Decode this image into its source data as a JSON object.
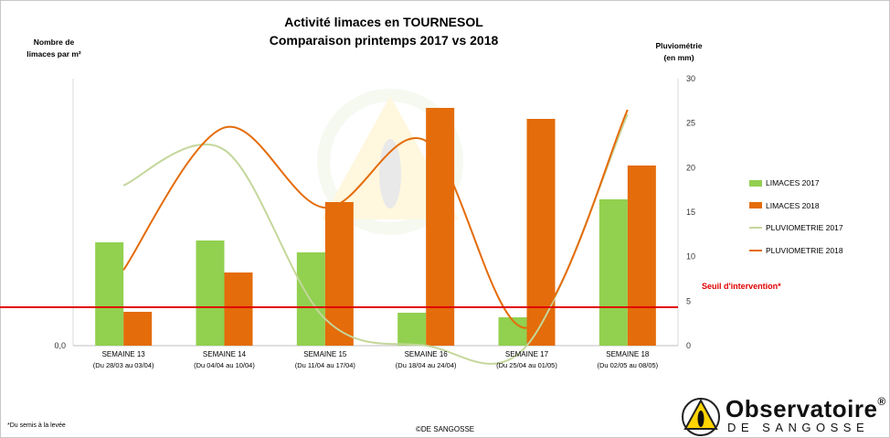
{
  "title": "Activité limaces en TOURNESOL",
  "subtitle": "Comparaison printemps 2017 vs 2018",
  "y_left_label_line1": "Nombre de",
  "y_left_label_line2": "limaces par m²",
  "y_right_label_line1": "Pluviométrie",
  "y_right_label_line2": "(en mm)",
  "threshold_label": "Seuil d'intervention*",
  "footnote": "*Du semis à la levée",
  "copyright": "©DE SANGOSSE",
  "logo": {
    "line1": "Observatoire",
    "reg": "®",
    "line2": "DE SANGOSSE"
  },
  "colors": {
    "limaces_2017": "#92d050",
    "limaces_2018": "#e46c0a",
    "pluvio_2017": "#c4d79b",
    "pluvio_2018": "#e46c0a",
    "threshold": "#e00000"
  },
  "chart_data": {
    "type": "bar",
    "categories": [
      "SEMAINE 13",
      "SEMAINE 14",
      "SEMAINE 15",
      "SEMAINE 16",
      "SEMAINE 17",
      "SEMAINE 18"
    ],
    "category_sublabels": [
      "(Du 28/03 au 03/04)",
      "(Du 04/04 au 10/04)",
      "(Du 11/04 au 17/04)",
      "(Du 18/04 au 24/04)",
      "(Du 25/04 au 01/05)",
      "(Du 02/05 au 08/05)"
    ],
    "series": [
      {
        "name": "LIMACES 2017",
        "type": "bar",
        "axis": "left",
        "values": [
          1.13,
          1.15,
          1.02,
          0.36,
          0.31,
          1.6
        ]
      },
      {
        "name": "LIMACES 2018",
        "type": "bar",
        "axis": "left",
        "values": [
          0.37,
          0.8,
          1.57,
          2.6,
          2.48,
          1.97
        ]
      },
      {
        "name": "PLUVIOMETRIE 2017",
        "type": "line",
        "axis": "right",
        "values": [
          18,
          22,
          3,
          0,
          0,
          26
        ]
      },
      {
        "name": "PLUVIOMETRIE 2018",
        "type": "line",
        "axis": "right",
        "values": [
          8.5,
          24.5,
          15.5,
          23,
          2,
          26.5
        ]
      }
    ],
    "threshold": {
      "label": "Seuil d'intervention*",
      "value": 0.42
    },
    "y_left": {
      "tick_labels": [
        "0,0"
      ],
      "range": [
        0,
        2.92
      ]
    },
    "y_right": {
      "range": [
        0,
        30
      ],
      "ticks": [
        0,
        5,
        10,
        15,
        20,
        25,
        30
      ]
    },
    "legend_position": "right"
  }
}
